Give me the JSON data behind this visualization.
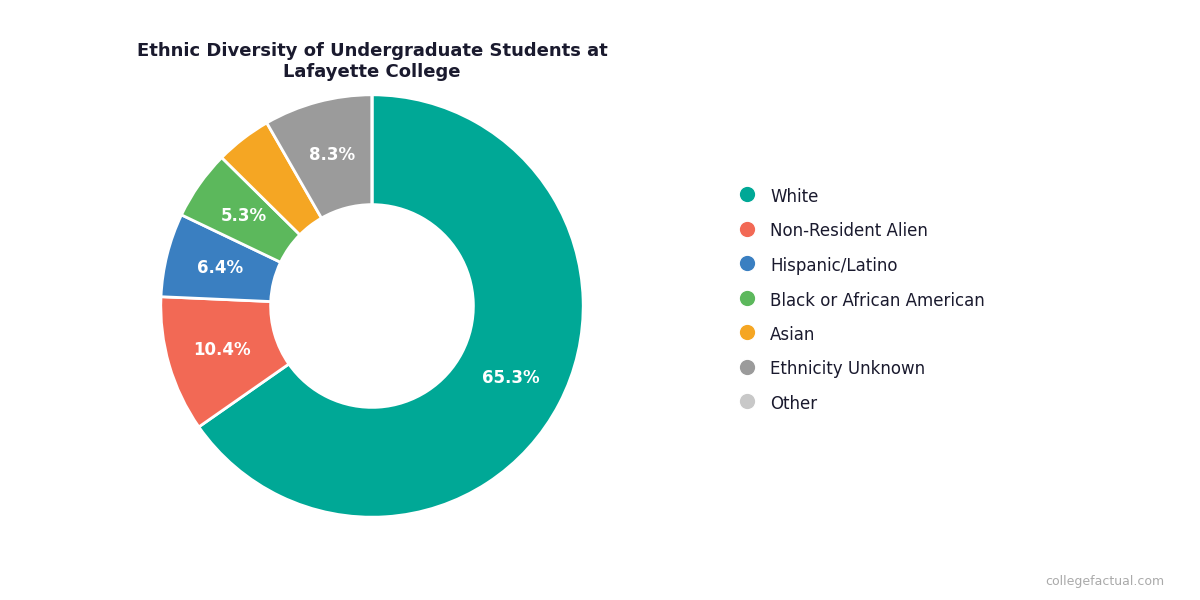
{
  "title": "Ethnic Diversity of Undergraduate Students at\nLafayette College",
  "labels": [
    "White",
    "Non-Resident Alien",
    "Hispanic/Latino",
    "Black or African American",
    "Asian",
    "Ethnicity Unknown",
    "Other"
  ],
  "values": [
    65.3,
    10.4,
    6.4,
    5.3,
    4.3,
    8.3,
    0.0
  ],
  "colors": [
    "#00A896",
    "#F26955",
    "#3A7FC1",
    "#5CB85C",
    "#F5A623",
    "#9B9B9B",
    "#C8C8C8"
  ],
  "pct_labels": [
    "65.3%",
    "10.4%",
    "6.4%",
    "5.3%",
    "",
    "8.3%",
    ""
  ],
  "background_color": "#ffffff",
  "title_color": "#1a1a2e",
  "label_color": "#ffffff",
  "title_fontsize": 13,
  "label_fontsize": 12,
  "legend_fontsize": 12,
  "watermark": "collegefactual.com"
}
